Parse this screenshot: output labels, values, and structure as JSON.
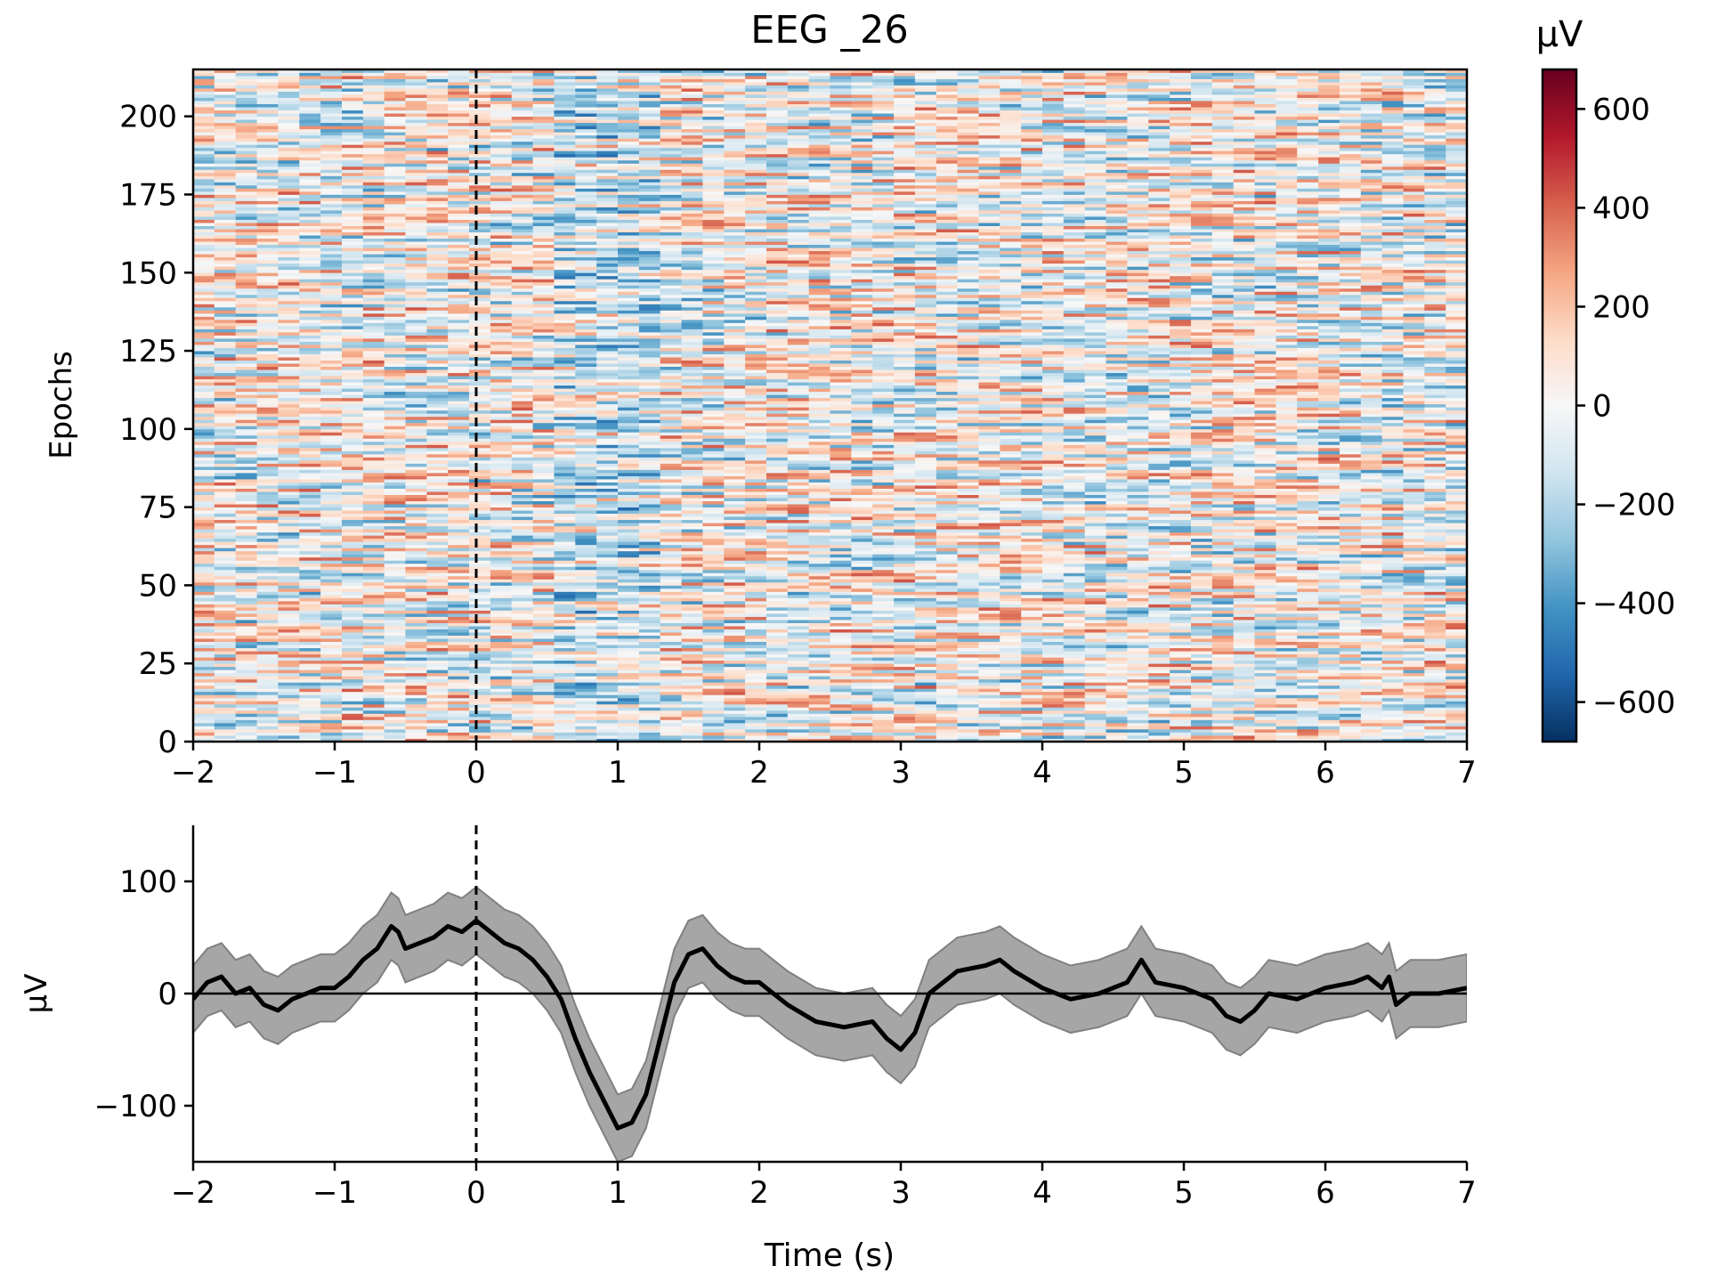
{
  "chart_data": [
    {
      "type": "heatmap",
      "title": "EEG _26",
      "xlabel": "",
      "ylabel": "Epochs",
      "xlim": [
        -2,
        7
      ],
      "ylim": [
        0,
        215
      ],
      "x_ticks": [
        "−2",
        "−1",
        "0",
        "1",
        "2",
        "3",
        "4",
        "5",
        "6",
        "7"
      ],
      "y_ticks": [
        "0",
        "25",
        "50",
        "75",
        "100",
        "125",
        "150",
        "175",
        "200"
      ],
      "colormap": "RdBu_r",
      "colorbar": {
        "label": "μV",
        "range": [
          -680,
          680
        ],
        "ticks": [
          "−600",
          "−400",
          "−200",
          "0",
          "200",
          "400",
          "600"
        ]
      },
      "event_marker_x": 0
    },
    {
      "type": "line",
      "title": "",
      "xlabel": "Time (s)",
      "ylabel": "μV",
      "xlim": [
        -2,
        7
      ],
      "ylim": [
        -150,
        150
      ],
      "x_ticks": [
        "−2",
        "−1",
        "0",
        "1",
        "2",
        "3",
        "4",
        "5",
        "6",
        "7"
      ],
      "y_ticks": [
        "−100",
        "0",
        "100"
      ],
      "event_marker_x": 0,
      "series": [
        {
          "x": [
            -2.0,
            -1.9,
            -1.8,
            -1.7,
            -1.6,
            -1.5,
            -1.4,
            -1.3,
            -1.2,
            -1.1,
            -1.0,
            -0.9,
            -0.8,
            -0.7,
            -0.6,
            -0.55,
            -0.5,
            -0.4,
            -0.3,
            -0.2,
            -0.1,
            0.0,
            0.1,
            0.2,
            0.3,
            0.4,
            0.5,
            0.6,
            0.7,
            0.8,
            0.9,
            1.0,
            1.1,
            1.2,
            1.3,
            1.4,
            1.5,
            1.6,
            1.7,
            1.8,
            1.9,
            2.0,
            2.2,
            2.4,
            2.6,
            2.8,
            2.9,
            3.0,
            3.1,
            3.2,
            3.4,
            3.6,
            3.7,
            3.8,
            4.0,
            4.2,
            4.4,
            4.6,
            4.7,
            4.8,
            5.0,
            5.2,
            5.3,
            5.4,
            5.5,
            5.6,
            5.8,
            6.0,
            6.2,
            6.3,
            6.4,
            6.45,
            6.5,
            6.6,
            6.8,
            7.0
          ],
          "y": [
            -5,
            10,
            15,
            0,
            5,
            -10,
            -15,
            -5,
            0,
            5,
            5,
            15,
            30,
            40,
            60,
            55,
            40,
            45,
            50,
            60,
            55,
            65,
            55,
            45,
            40,
            30,
            15,
            -5,
            -40,
            -70,
            -95,
            -120,
            -115,
            -90,
            -40,
            10,
            35,
            40,
            25,
            15,
            10,
            10,
            -10,
            -25,
            -30,
            -25,
            -40,
            -50,
            -35,
            0,
            20,
            25,
            30,
            20,
            5,
            -5,
            0,
            10,
            30,
            10,
            5,
            -5,
            -20,
            -25,
            -15,
            0,
            -5,
            5,
            10,
            15,
            5,
            15,
            -10,
            0,
            0,
            5
          ],
          "band": [
            -30,
            30
          ]
        }
      ]
    }
  ]
}
